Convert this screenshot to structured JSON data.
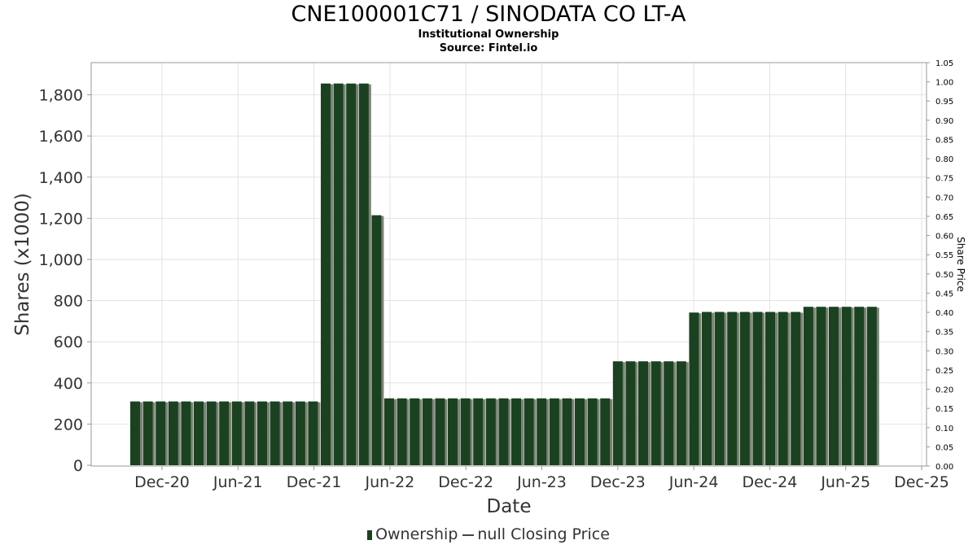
{
  "title": "CNE100001C71 / SINODATA CO LT-A",
  "subtitle": "Institutional Ownership",
  "source": "Source: Fintel.io",
  "chart_data": {
    "type": "bar",
    "xlabel": "Date",
    "ylabel": "Shares (x1000)",
    "y2label": "Share Price",
    "ylim": [
      0,
      1940
    ],
    "y2lim": [
      0,
      1.05
    ],
    "yticks": [
      "0",
      "200",
      "400",
      "600",
      "800",
      "1,000",
      "1,200",
      "1,400",
      "1,600",
      "1,800"
    ],
    "ytick_values": [
      0,
      200,
      400,
      600,
      800,
      1000,
      1200,
      1400,
      1600,
      1800
    ],
    "y2ticks": [
      "0.00",
      "0.05",
      "0.10",
      "0.15",
      "0.20",
      "0.25",
      "0.30",
      "0.35",
      "0.40",
      "0.45",
      "0.50",
      "0.55",
      "0.60",
      "0.65",
      "0.70",
      "0.75",
      "0.80",
      "0.85",
      "0.90",
      "0.95",
      "1.00",
      "1.05"
    ],
    "xticks": [
      "Dec-20",
      "Jun-21",
      "Dec-21",
      "Jun-22",
      "Dec-22",
      "Jun-23",
      "Dec-23",
      "Jun-24",
      "Dec-24",
      "Jun-25",
      "Dec-25"
    ],
    "grid": true,
    "legend_position": "bottom",
    "bar_color": "#1a4220",
    "series": [
      {
        "name": "Ownership",
        "values": [
          310,
          310,
          310,
          310,
          310,
          310,
          310,
          310,
          310,
          310,
          310,
          310,
          310,
          310,
          310,
          1855,
          1855,
          1855,
          1855,
          1215,
          325,
          325,
          325,
          325,
          325,
          325,
          325,
          325,
          325,
          325,
          325,
          325,
          325,
          325,
          325,
          325,
          325,
          325,
          505,
          505,
          505,
          505,
          505,
          505,
          742,
          745,
          745,
          745,
          745,
          745,
          745,
          745,
          745,
          770,
          770,
          770,
          770,
          770,
          770
        ]
      }
    ],
    "legend": {
      "ownership_label": "Ownership",
      "price_label": "null Closing Price"
    }
  }
}
